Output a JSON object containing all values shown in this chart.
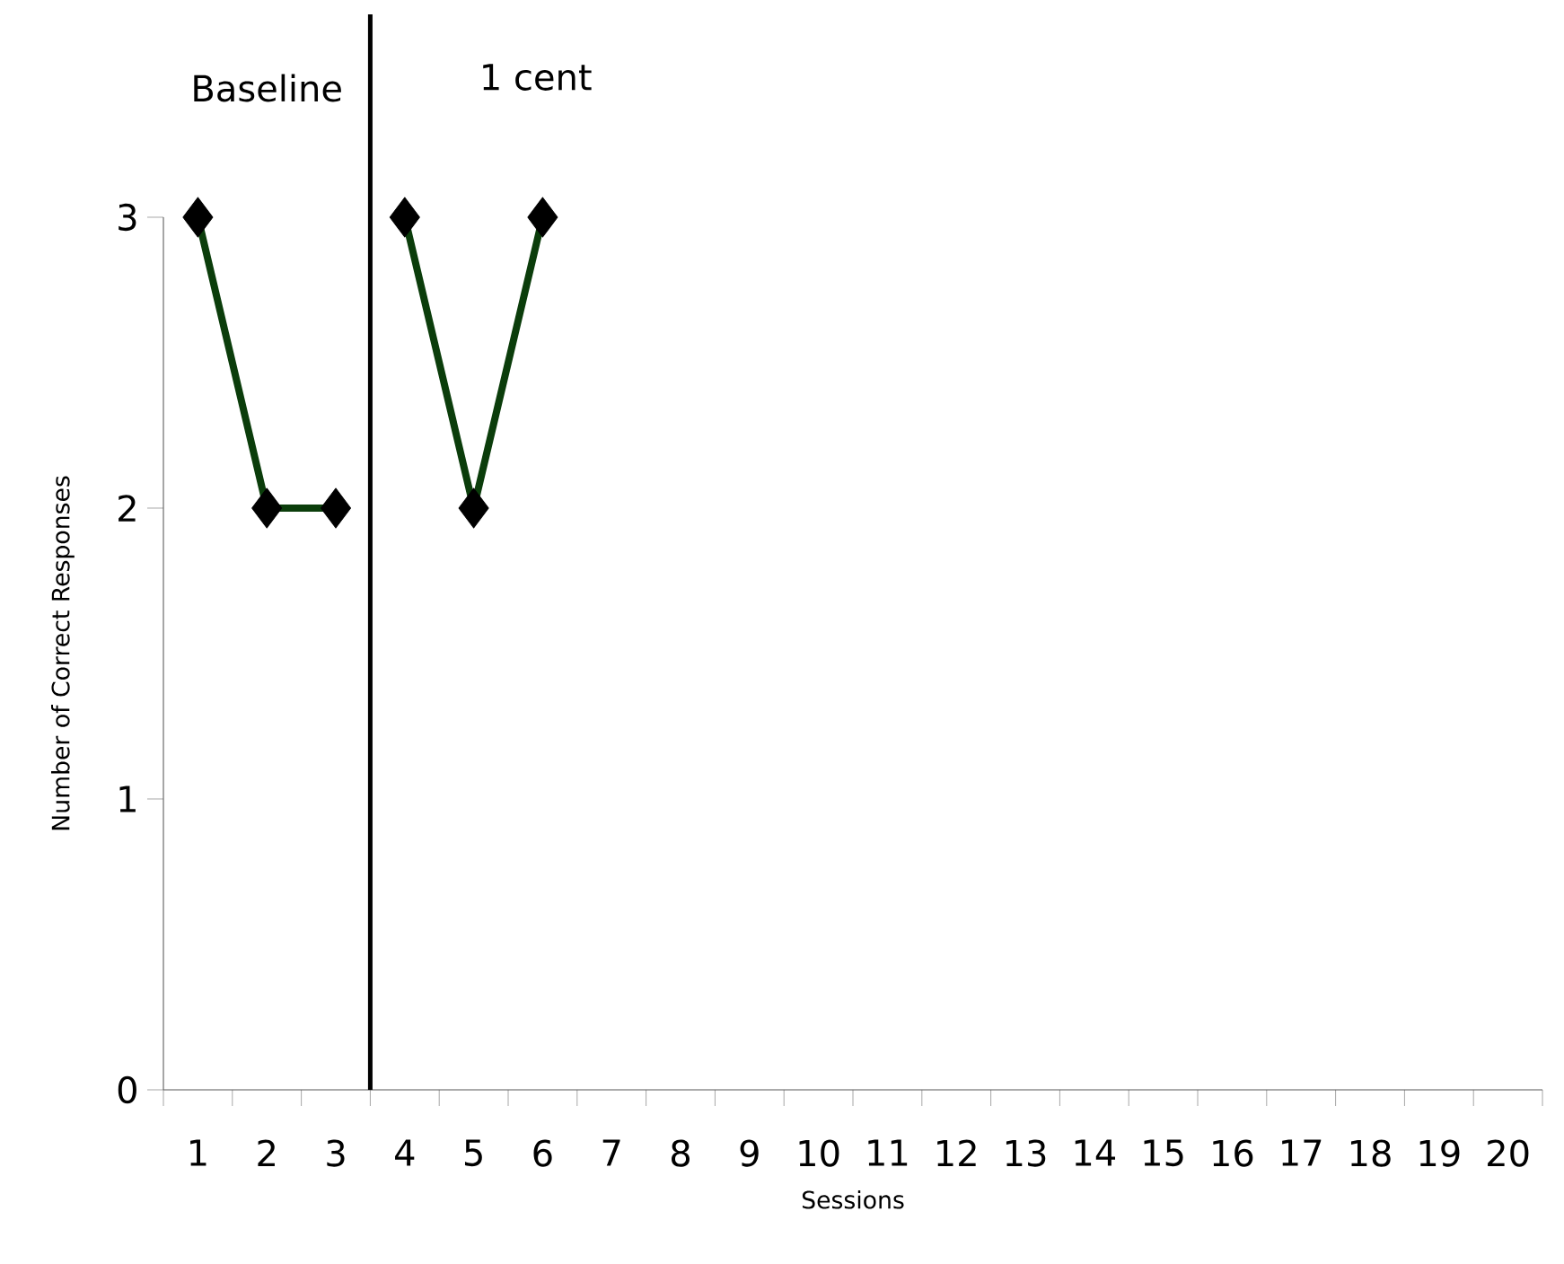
{
  "chart_data": {
    "type": "line",
    "xlabel": "Sessions",
    "ylabel": "Number of Correct Responses",
    "xlim": [
      0.5,
      20.5
    ],
    "xticks": [
      1,
      2,
      3,
      4,
      5,
      6,
      7,
      8,
      9,
      10,
      11,
      12,
      13,
      14,
      15,
      16,
      17,
      18,
      19,
      20
    ],
    "ylim": [
      0,
      3
    ],
    "yticks": [
      0,
      1,
      2,
      3
    ],
    "marker": "diamond",
    "line_style": "solid",
    "grid": false,
    "series": [
      {
        "color": "#0b3d0b",
        "x": [
          1,
          2,
          3
        ],
        "values": [
          3,
          2,
          2
        ]
      },
      {
        "color": "#0b3d0b",
        "x": [
          4,
          5,
          6
        ],
        "values": [
          3,
          2,
          3
        ]
      }
    ],
    "ref_lines": [
      {
        "axis": "x",
        "value": 3.5,
        "color": "#000000"
      }
    ],
    "annotations": [
      "Baseline",
      "1 cent"
    ]
  }
}
